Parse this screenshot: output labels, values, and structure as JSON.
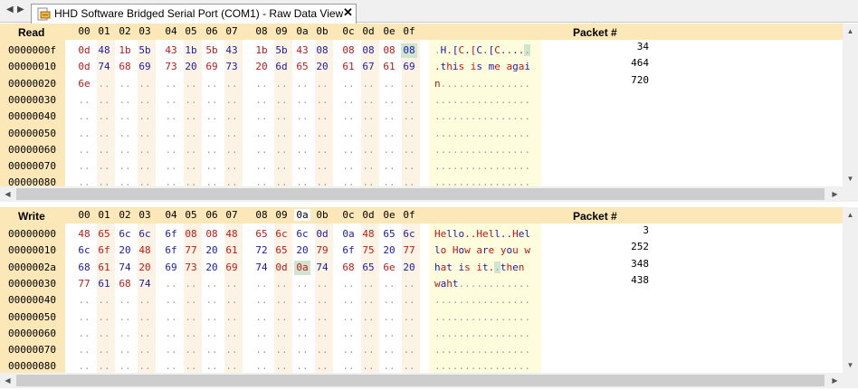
{
  "tab": {
    "title": "HHD Software Bridged Serial Port (COM1) - Raw Data View",
    "close_glyph": "✕",
    "prev_glyph": "◀",
    "next_glyph": "▶"
  },
  "colors": {
    "header_bg": "#fbe7b8",
    "ascii_bg": "#fdfcdd",
    "odd_col_bg": "#fdf3e4",
    "red_text": "#c01818",
    "blue_text": "#1a1aa8",
    "highlight": "#cfe5cf"
  },
  "columns": [
    "00",
    "01",
    "02",
    "03",
    "04",
    "05",
    "06",
    "07",
    "08",
    "09",
    "0a",
    "0b",
    "0c",
    "0d",
    "0e",
    "0f"
  ],
  "read": {
    "title": "Read",
    "packet_header": "Packet #",
    "highlight_col": -1,
    "rows": [
      {
        "offset": "0000000f",
        "packet": "34",
        "bytes": [
          "0d",
          "48",
          "1b",
          "5b",
          "43",
          "1b",
          "5b",
          "43",
          "1b",
          "5b",
          "43",
          "08",
          "08",
          "08",
          "08",
          "08"
        ],
        "colors": [
          "r",
          "b",
          "r",
          "b",
          "r",
          "b",
          "r",
          "b",
          "r",
          "b",
          "r",
          "b",
          "r",
          "b",
          "r",
          "b"
        ],
        "hl": [
          15
        ],
        "ascii": ".H.[C.[C.[C.....",
        "ascii_colors": "gbrbrbrbrbrbrbrb",
        "ascii_hl": [
          15
        ]
      },
      {
        "offset": "00000010",
        "packet": "464",
        "bytes": [
          "0d",
          "74",
          "68",
          "69",
          "73",
          "20",
          "69",
          "73",
          "20",
          "6d",
          "65",
          "20",
          "61",
          "67",
          "61",
          "69"
        ],
        "colors": [
          "r",
          "b",
          "r",
          "b",
          "r",
          "b",
          "r",
          "b",
          "r",
          "b",
          "r",
          "b",
          "r",
          "b",
          "r",
          "b"
        ],
        "hl": [],
        "ascii": ".this is me agai",
        "ascii_colors": "rbrbrbrbrbrbrbrb",
        "ascii_hl": []
      },
      {
        "offset": "00000020",
        "packet": "720",
        "bytes": [
          "6e"
        ],
        "colors": [
          "r"
        ],
        "hl": [],
        "ascii": "n",
        "ascii_colors": "r",
        "ascii_hl": []
      },
      {
        "offset": "00000030",
        "packet": "",
        "bytes": [],
        "colors": [],
        "hl": [],
        "ascii": "",
        "ascii_colors": "",
        "ascii_hl": []
      },
      {
        "offset": "00000040",
        "packet": "",
        "bytes": [],
        "colors": [],
        "hl": [],
        "ascii": "",
        "ascii_colors": "",
        "ascii_hl": []
      },
      {
        "offset": "00000050",
        "packet": "",
        "bytes": [],
        "colors": [],
        "hl": [],
        "ascii": "",
        "ascii_colors": "",
        "ascii_hl": []
      },
      {
        "offset": "00000060",
        "packet": "",
        "bytes": [],
        "colors": [],
        "hl": [],
        "ascii": "",
        "ascii_colors": "",
        "ascii_hl": []
      },
      {
        "offset": "00000070",
        "packet": "",
        "bytes": [],
        "colors": [],
        "hl": [],
        "ascii": "",
        "ascii_colors": "",
        "ascii_hl": []
      },
      {
        "offset": "00000080",
        "packet": "",
        "bytes": [],
        "colors": [],
        "hl": [],
        "ascii": "",
        "ascii_colors": "",
        "ascii_hl": []
      }
    ]
  },
  "write": {
    "title": "Write",
    "packet_header": "Packet #",
    "highlight_col": 10,
    "rows": [
      {
        "offset": "00000000",
        "packet": "3",
        "bytes": [
          "48",
          "65",
          "6c",
          "6c",
          "6f",
          "08",
          "08",
          "48",
          "65",
          "6c",
          "6c",
          "0d",
          "0a",
          "48",
          "65",
          "6c"
        ],
        "colors": [
          "r",
          "r",
          "b",
          "b",
          "b",
          "r",
          "r",
          "r",
          "r",
          "r",
          "b",
          "b",
          "b",
          "r",
          "b",
          "b"
        ],
        "hl": [],
        "ascii": "Hello..Hell..Hel",
        "ascii_colors": "rrbbbrrrrrbbbrbb",
        "ascii_hl": []
      },
      {
        "offset": "00000010",
        "packet": "252",
        "bytes": [
          "6c",
          "6f",
          "20",
          "48",
          "6f",
          "77",
          "20",
          "61",
          "72",
          "65",
          "20",
          "79",
          "6f",
          "75",
          "20",
          "77"
        ],
        "colors": [
          "b",
          "r",
          "b",
          "r",
          "b",
          "r",
          "b",
          "r",
          "b",
          "r",
          "b",
          "r",
          "b",
          "r",
          "b",
          "r"
        ],
        "hl": [],
        "ascii": "lo How are you w",
        "ascii_colors": "brbrbrbrbrbrbrbr",
        "ascii_hl": []
      },
      {
        "offset": "0000002a",
        "packet": "348",
        "bytes": [
          "68",
          "61",
          "74",
          "20",
          "69",
          "73",
          "20",
          "69",
          "74",
          "0d",
          "0a",
          "74",
          "68",
          "65",
          "6e",
          "20"
        ],
        "colors": [
          "b",
          "r",
          "b",
          "r",
          "b",
          "r",
          "b",
          "r",
          "b",
          "r",
          "r",
          "b",
          "r",
          "b",
          "r",
          "b"
        ],
        "hl": [
          10
        ],
        "ascii": "hat is it..then ",
        "ascii_colors": "brbrbrbrbrgbrbrb",
        "ascii_hl": [
          10
        ]
      },
      {
        "offset": "00000030",
        "packet": "438",
        "bytes": [
          "77",
          "61",
          "68",
          "74"
        ],
        "colors": [
          "r",
          "b",
          "r",
          "b"
        ],
        "hl": [],
        "ascii": "waht",
        "ascii_colors": "rbrb",
        "ascii_hl": []
      },
      {
        "offset": "00000040",
        "packet": "",
        "bytes": [],
        "colors": [],
        "hl": [],
        "ascii": "",
        "ascii_colors": "",
        "ascii_hl": []
      },
      {
        "offset": "00000050",
        "packet": "",
        "bytes": [],
        "colors": [],
        "hl": [],
        "ascii": "",
        "ascii_colors": "",
        "ascii_hl": []
      },
      {
        "offset": "00000060",
        "packet": "",
        "bytes": [],
        "colors": [],
        "hl": [],
        "ascii": "",
        "ascii_colors": "",
        "ascii_hl": []
      },
      {
        "offset": "00000070",
        "packet": "",
        "bytes": [],
        "colors": [],
        "hl": [],
        "ascii": "",
        "ascii_colors": "",
        "ascii_hl": []
      },
      {
        "offset": "00000080",
        "packet": "",
        "bytes": [],
        "colors": [],
        "hl": [],
        "ascii": "",
        "ascii_colors": "",
        "ascii_hl": []
      }
    ]
  },
  "empty_byte": "..",
  "empty_ascii": "."
}
